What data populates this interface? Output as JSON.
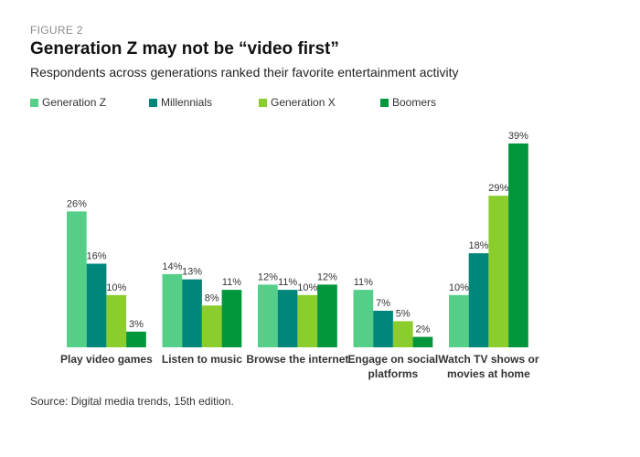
{
  "figure_label": "FIGURE 2",
  "chart_data": {
    "type": "bar",
    "title": "Generation Z may not be “video first”",
    "subtitle": "Respondents across generations ranked their favorite entertainment activity",
    "categories": [
      "Play video games",
      "Listen to music",
      "Browse the internet",
      "Engage on social platforms",
      "Watch TV shows or movies at home"
    ],
    "category_lines": [
      [
        "Play video games"
      ],
      [
        "Listen to music"
      ],
      [
        "Browse the internet"
      ],
      [
        "Engage on social",
        "platforms"
      ],
      [
        "Watch TV shows or",
        "movies at home"
      ]
    ],
    "series": [
      {
        "name": "Generation Z",
        "color": "#55cf88",
        "values": [
          26,
          14,
          12,
          11,
          10
        ]
      },
      {
        "name": "Millennials",
        "color": "#00877a",
        "values": [
          16,
          13,
          11,
          7,
          18
        ]
      },
      {
        "name": "Generation X",
        "color": "#8acd2c",
        "values": [
          10,
          8,
          10,
          5,
          29
        ]
      },
      {
        "name": "Boomers",
        "color": "#00963c",
        "values": [
          3,
          11,
          12,
          2,
          39
        ]
      }
    ],
    "value_suffix": "%",
    "ylim": [
      0,
      39
    ],
    "grid": false,
    "legend_position": "top-left",
    "source": "Source: Digital media trends, 15th edition."
  }
}
